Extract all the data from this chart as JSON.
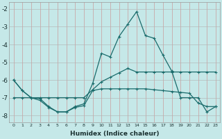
{
  "xlabel": "Humidex (Indice chaleur)",
  "background_color": "#c5e8e8",
  "grid_color": "#b0c8c8",
  "line_color": "#1a6b6b",
  "x": [
    0,
    1,
    2,
    3,
    4,
    5,
    6,
    7,
    8,
    9,
    10,
    11,
    12,
    13,
    14,
    15,
    16,
    17,
    18,
    19,
    20,
    21,
    22,
    23
  ],
  "line1_y": [
    -6.0,
    -6.6,
    -7.0,
    -7.05,
    -7.5,
    -7.8,
    -7.8,
    -7.5,
    -7.35,
    -6.2,
    -4.5,
    -4.7,
    -3.55,
    -2.85,
    -2.15,
    -3.5,
    -3.65,
    -4.6,
    -5.5,
    -7.0,
    -7.0,
    -7.0,
    -7.8,
    -7.5
  ],
  "line2_y": [
    -7.0,
    -7.0,
    -7.0,
    -7.15,
    -7.55,
    -7.8,
    -7.8,
    -7.55,
    -7.45,
    -6.6,
    -6.5,
    -6.5,
    -6.5,
    -6.5,
    -6.5,
    -6.5,
    -6.55,
    -6.6,
    -6.65,
    -6.7,
    -6.75,
    -7.3,
    -7.5,
    -7.5
  ],
  "line3_y": [
    -6.0,
    -6.6,
    -7.0,
    -7.0,
    -7.0,
    -7.0,
    -7.0,
    -7.0,
    -7.0,
    -6.55,
    -6.1,
    -5.85,
    -5.6,
    -5.35,
    -5.55,
    -5.55,
    -5.55,
    -5.55,
    -5.55,
    -5.55,
    -5.55,
    -5.55,
    -5.55,
    -5.55
  ],
  "ylim": [
    -8.4,
    -1.6
  ],
  "xlim": [
    -0.5,
    23.5
  ],
  "yticks": [
    -8,
    -7,
    -6,
    -5,
    -4,
    -3,
    -2
  ],
  "xticks": [
    0,
    1,
    2,
    3,
    4,
    5,
    6,
    7,
    8,
    9,
    10,
    11,
    12,
    13,
    14,
    15,
    16,
    17,
    18,
    19,
    20,
    21,
    22,
    23
  ]
}
